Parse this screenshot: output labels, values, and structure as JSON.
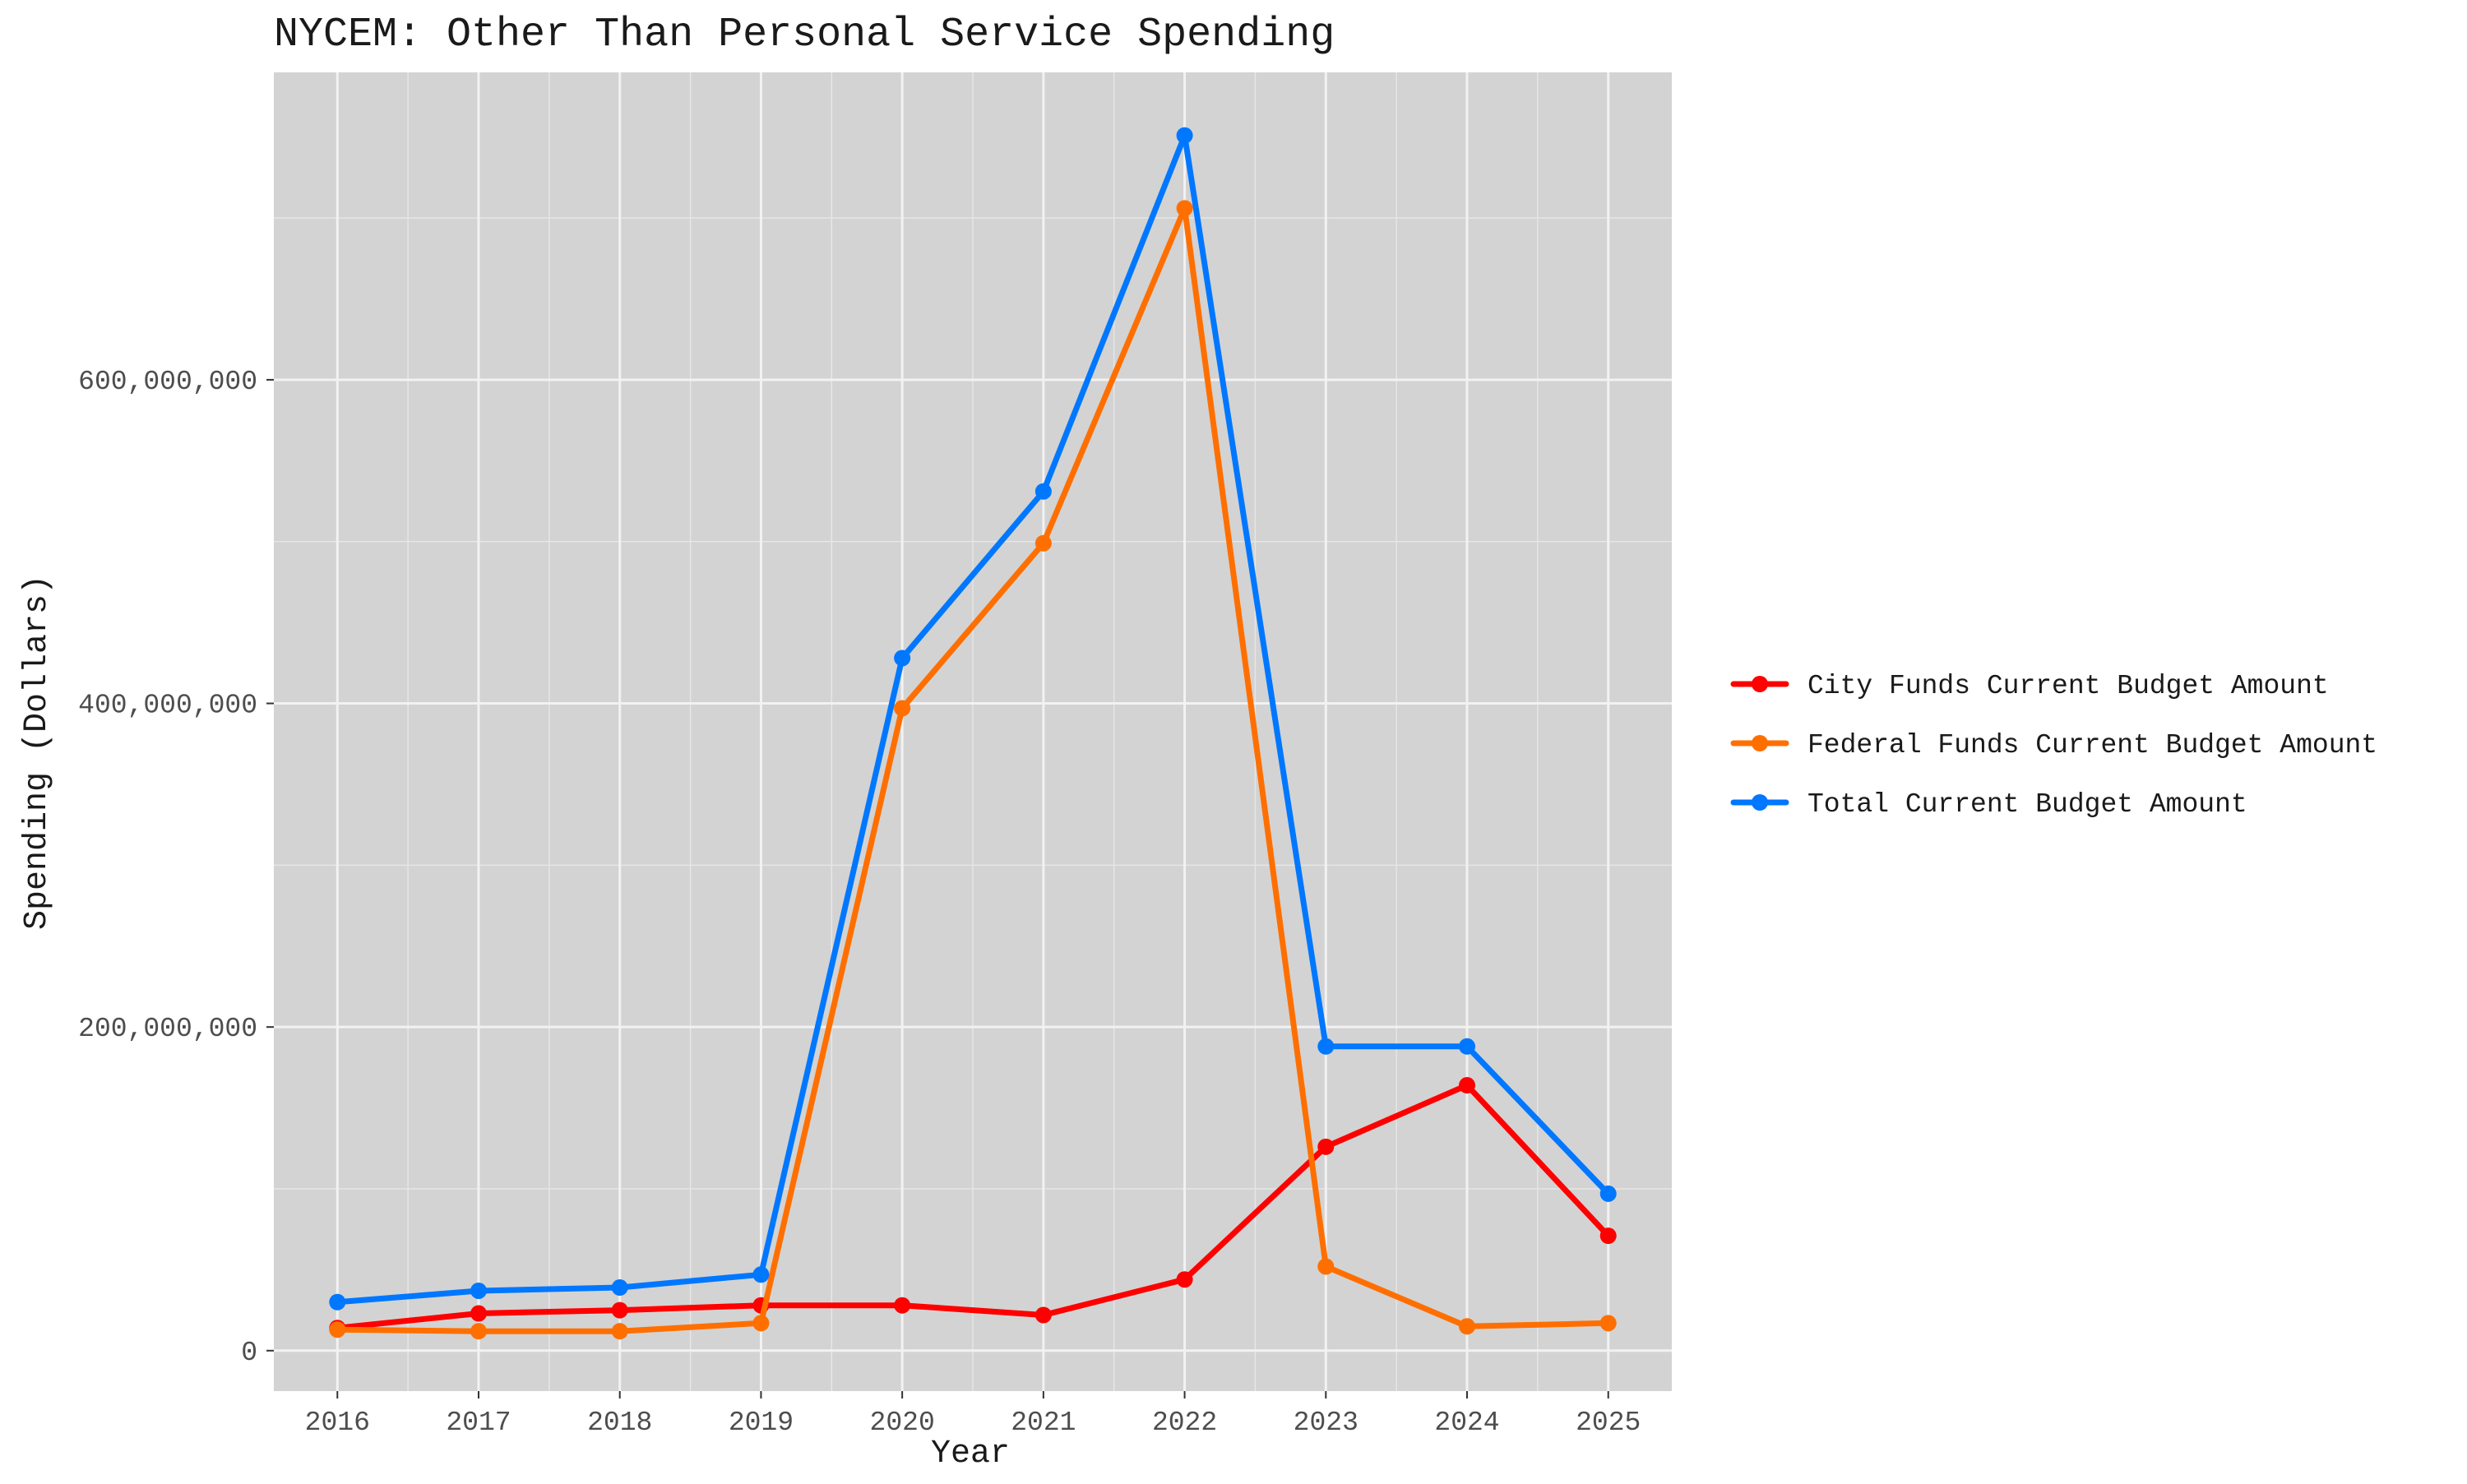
{
  "chart_data": {
    "type": "line",
    "title": "NYCEM: Other Than Personal Service Spending",
    "xlabel": "Year",
    "ylabel": "Spending (Dollars)",
    "x": [
      2016,
      2017,
      2018,
      2019,
      2020,
      2021,
      2022,
      2023,
      2024,
      2025
    ],
    "x_tick_labels": [
      "2016",
      "2017",
      "2018",
      "2019",
      "2020",
      "2021",
      "2022",
      "2023",
      "2024",
      "2025"
    ],
    "y_ticks": [
      0,
      200000000,
      400000000,
      600000000
    ],
    "y_tick_labels": [
      "0",
      "200,000,000",
      "400,000,000",
      "600,000,000"
    ],
    "xlim": [
      2015.55,
      2025.45
    ],
    "ylim": [
      -25000000,
      790000000
    ],
    "grid": true,
    "legend_position": "right",
    "series": [
      {
        "name": "City Funds Current Budget Amount",
        "color": "#ff0000",
        "values": [
          14000000,
          23000000,
          25000000,
          28000000,
          28000000,
          22000000,
          44000000,
          126000000,
          164000000,
          71000000
        ]
      },
      {
        "name": "Federal Funds Current Budget Amount",
        "color": "#ff6f00",
        "values": [
          13000000,
          12000000,
          12000000,
          17000000,
          397000000,
          499000000,
          706000000,
          52000000,
          15000000,
          17000000
        ]
      },
      {
        "name": "Total Current Budget Amount",
        "color": "#0077ff",
        "values": [
          30000000,
          37000000,
          39000000,
          47000000,
          428000000,
          531000000,
          751000000,
          188000000,
          188000000,
          97000000
        ]
      }
    ]
  }
}
